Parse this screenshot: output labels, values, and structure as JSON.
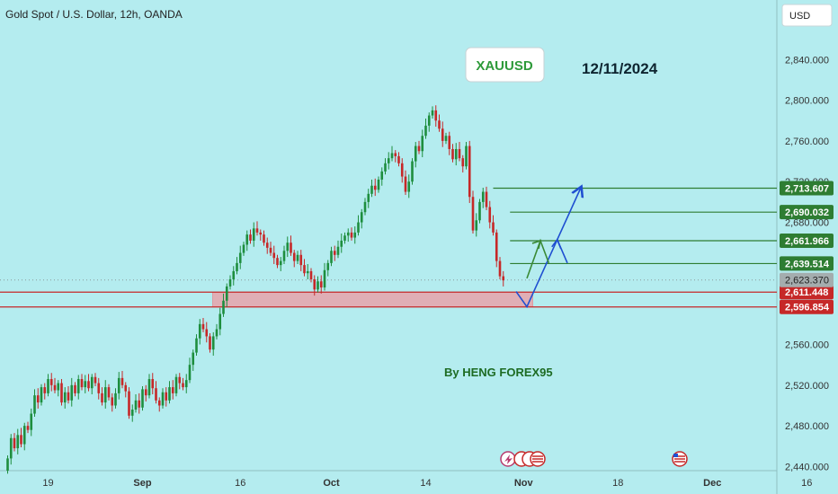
{
  "header": {
    "title": "Gold Spot / U.S. Dollar, 12h, OANDA"
  },
  "currency_button": {
    "label": "USD"
  },
  "symbol_box": {
    "label": "XAUUSD"
  },
  "date_text": "12/11/2024",
  "author_text": "By HENG FOREX95",
  "colors": {
    "background": "#b4ecef",
    "up": "#1e8e3e",
    "down": "#c62828",
    "zone": "#e8a3aa",
    "resistance": "#2e7d32",
    "support": "#c62828",
    "arrow_blue": "#1f4fd1",
    "arrow_green": "#3a8a35"
  },
  "chart_data": {
    "type": "candlestick",
    "title": "Gold Spot / U.S. Dollar, 12h, OANDA",
    "ylim": [
      2436,
      2872
    ],
    "y_ticks": [
      "2,440.000",
      "2,480.000",
      "2,520.000",
      "2,560.000",
      "2,600.000",
      "2,640.000",
      "2,680.000",
      "2,720.000",
      "2,760.000",
      "2,800.000",
      "2,840.000"
    ],
    "y_tick_values": [
      2440,
      2480,
      2520,
      2560,
      2600,
      2640,
      2680,
      2720,
      2760,
      2800,
      2840
    ],
    "x_ticks": [
      "19",
      "Sep",
      "16",
      "Oct",
      "14",
      "Nov",
      "18",
      "Dec",
      "16"
    ],
    "x_tick_index": [
      12,
      40,
      69,
      96,
      124,
      153,
      181,
      209,
      237
    ],
    "closes": [
      2448,
      2468,
      2458,
      2471,
      2462,
      2480,
      2476,
      2492,
      2510,
      2503,
      2518,
      2512,
      2526,
      2520,
      2515,
      2522,
      2503,
      2513,
      2505,
      2520,
      2512,
      2526,
      2518,
      2524,
      2517,
      2528,
      2522,
      2512,
      2503,
      2518,
      2508,
      2500,
      2512,
      2527,
      2520,
      2514,
      2490,
      2496,
      2505,
      2498,
      2516,
      2510,
      2526,
      2517,
      2505,
      2500,
      2513,
      2505,
      2518,
      2512,
      2528,
      2522,
      2518,
      2525,
      2540,
      2552,
      2566,
      2580,
      2575,
      2568,
      2555,
      2568,
      2575,
      2590,
      2603,
      2617,
      2624,
      2632,
      2640,
      2650,
      2658,
      2668,
      2662,
      2674,
      2670,
      2668,
      2660,
      2655,
      2650,
      2645,
      2638,
      2642,
      2652,
      2660,
      2650,
      2642,
      2648,
      2638,
      2630,
      2632,
      2624,
      2614,
      2622,
      2616,
      2633,
      2640,
      2652,
      2648,
      2656,
      2662,
      2667,
      2670,
      2665,
      2670,
      2680,
      2690,
      2700,
      2708,
      2716,
      2712,
      2722,
      2730,
      2738,
      2743,
      2748,
      2745,
      2738,
      2725,
      2710,
      2720,
      2740,
      2755,
      2750,
      2765,
      2775,
      2785,
      2790,
      2780,
      2772,
      2760,
      2765,
      2752,
      2742,
      2752,
      2743,
      2735,
      2755,
      2705,
      2672,
      2682,
      2700,
      2710,
      2695,
      2680,
      2670,
      2642,
      2627,
      2623
    ],
    "levels": [
      {
        "value": 2713.607,
        "label": "2,713.607",
        "kind": "resistance"
      },
      {
        "value": 2690.032,
        "label": "2,690.032",
        "kind": "resistance"
      },
      {
        "value": 2661.966,
        "label": "2,661.966",
        "kind": "resistance"
      },
      {
        "value": 2639.514,
        "label": "2,639.514",
        "kind": "resistance"
      },
      {
        "value": 2611.448,
        "label": "2,611.448",
        "kind": "support"
      },
      {
        "value": 2596.854,
        "label": "2,596.854",
        "kind": "support"
      }
    ],
    "current_price": {
      "value": 2623.37,
      "label": "2,623.370"
    },
    "zone": {
      "from": 2596.854,
      "to": 2611.448
    },
    "projection_blue": [
      [
        154,
        2597
      ],
      [
        163,
        2663
      ],
      [
        170,
        2714
      ]
    ],
    "projection_green": [
      [
        154,
        2625
      ],
      [
        158,
        2662
      ]
    ]
  }
}
